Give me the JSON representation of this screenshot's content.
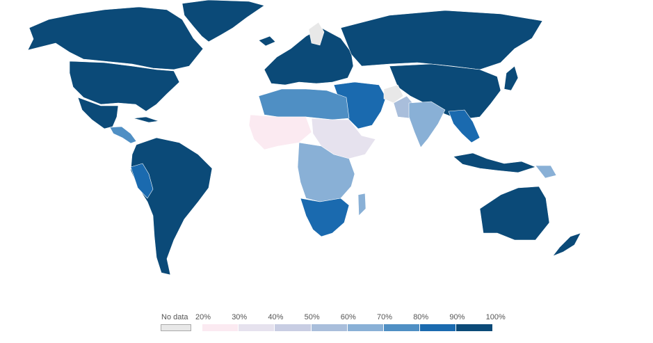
{
  "map": {
    "type": "choropleth",
    "region": "world",
    "colors": {
      "band_20_30": "#fbeaf1",
      "band_30_40": "#e6e2ee",
      "band_40_50": "#c8cde3",
      "band_50_60": "#a9bedb",
      "band_60_70": "#89b0d6",
      "band_70_80": "#4f8fc4",
      "band_80_90": "#1a6aaf",
      "band_90_100": "#0b4a78",
      "no_data": "#e8e8e8",
      "land_border": "#ffffff",
      "background": "#ffffff"
    }
  },
  "legend": {
    "no_data_label": "No data",
    "no_data_color": "#e8e8e8",
    "ticks": [
      "20%",
      "30%",
      "40%",
      "50%",
      "60%",
      "70%",
      "80%",
      "90%",
      "100%"
    ],
    "bins": [
      {
        "from": 20,
        "to": 30,
        "color": "#fbeaf1"
      },
      {
        "from": 30,
        "to": 40,
        "color": "#e6e2ee"
      },
      {
        "from": 40,
        "to": 50,
        "color": "#c8cde3"
      },
      {
        "from": 50,
        "to": 60,
        "color": "#a9bedb"
      },
      {
        "from": 60,
        "to": 70,
        "color": "#89b0d6"
      },
      {
        "from": 70,
        "to": 80,
        "color": "#4f8fc4"
      },
      {
        "from": 80,
        "to": 90,
        "color": "#1a6aaf"
      },
      {
        "from": 90,
        "to": 100,
        "color": "#0b4a78"
      }
    ]
  }
}
